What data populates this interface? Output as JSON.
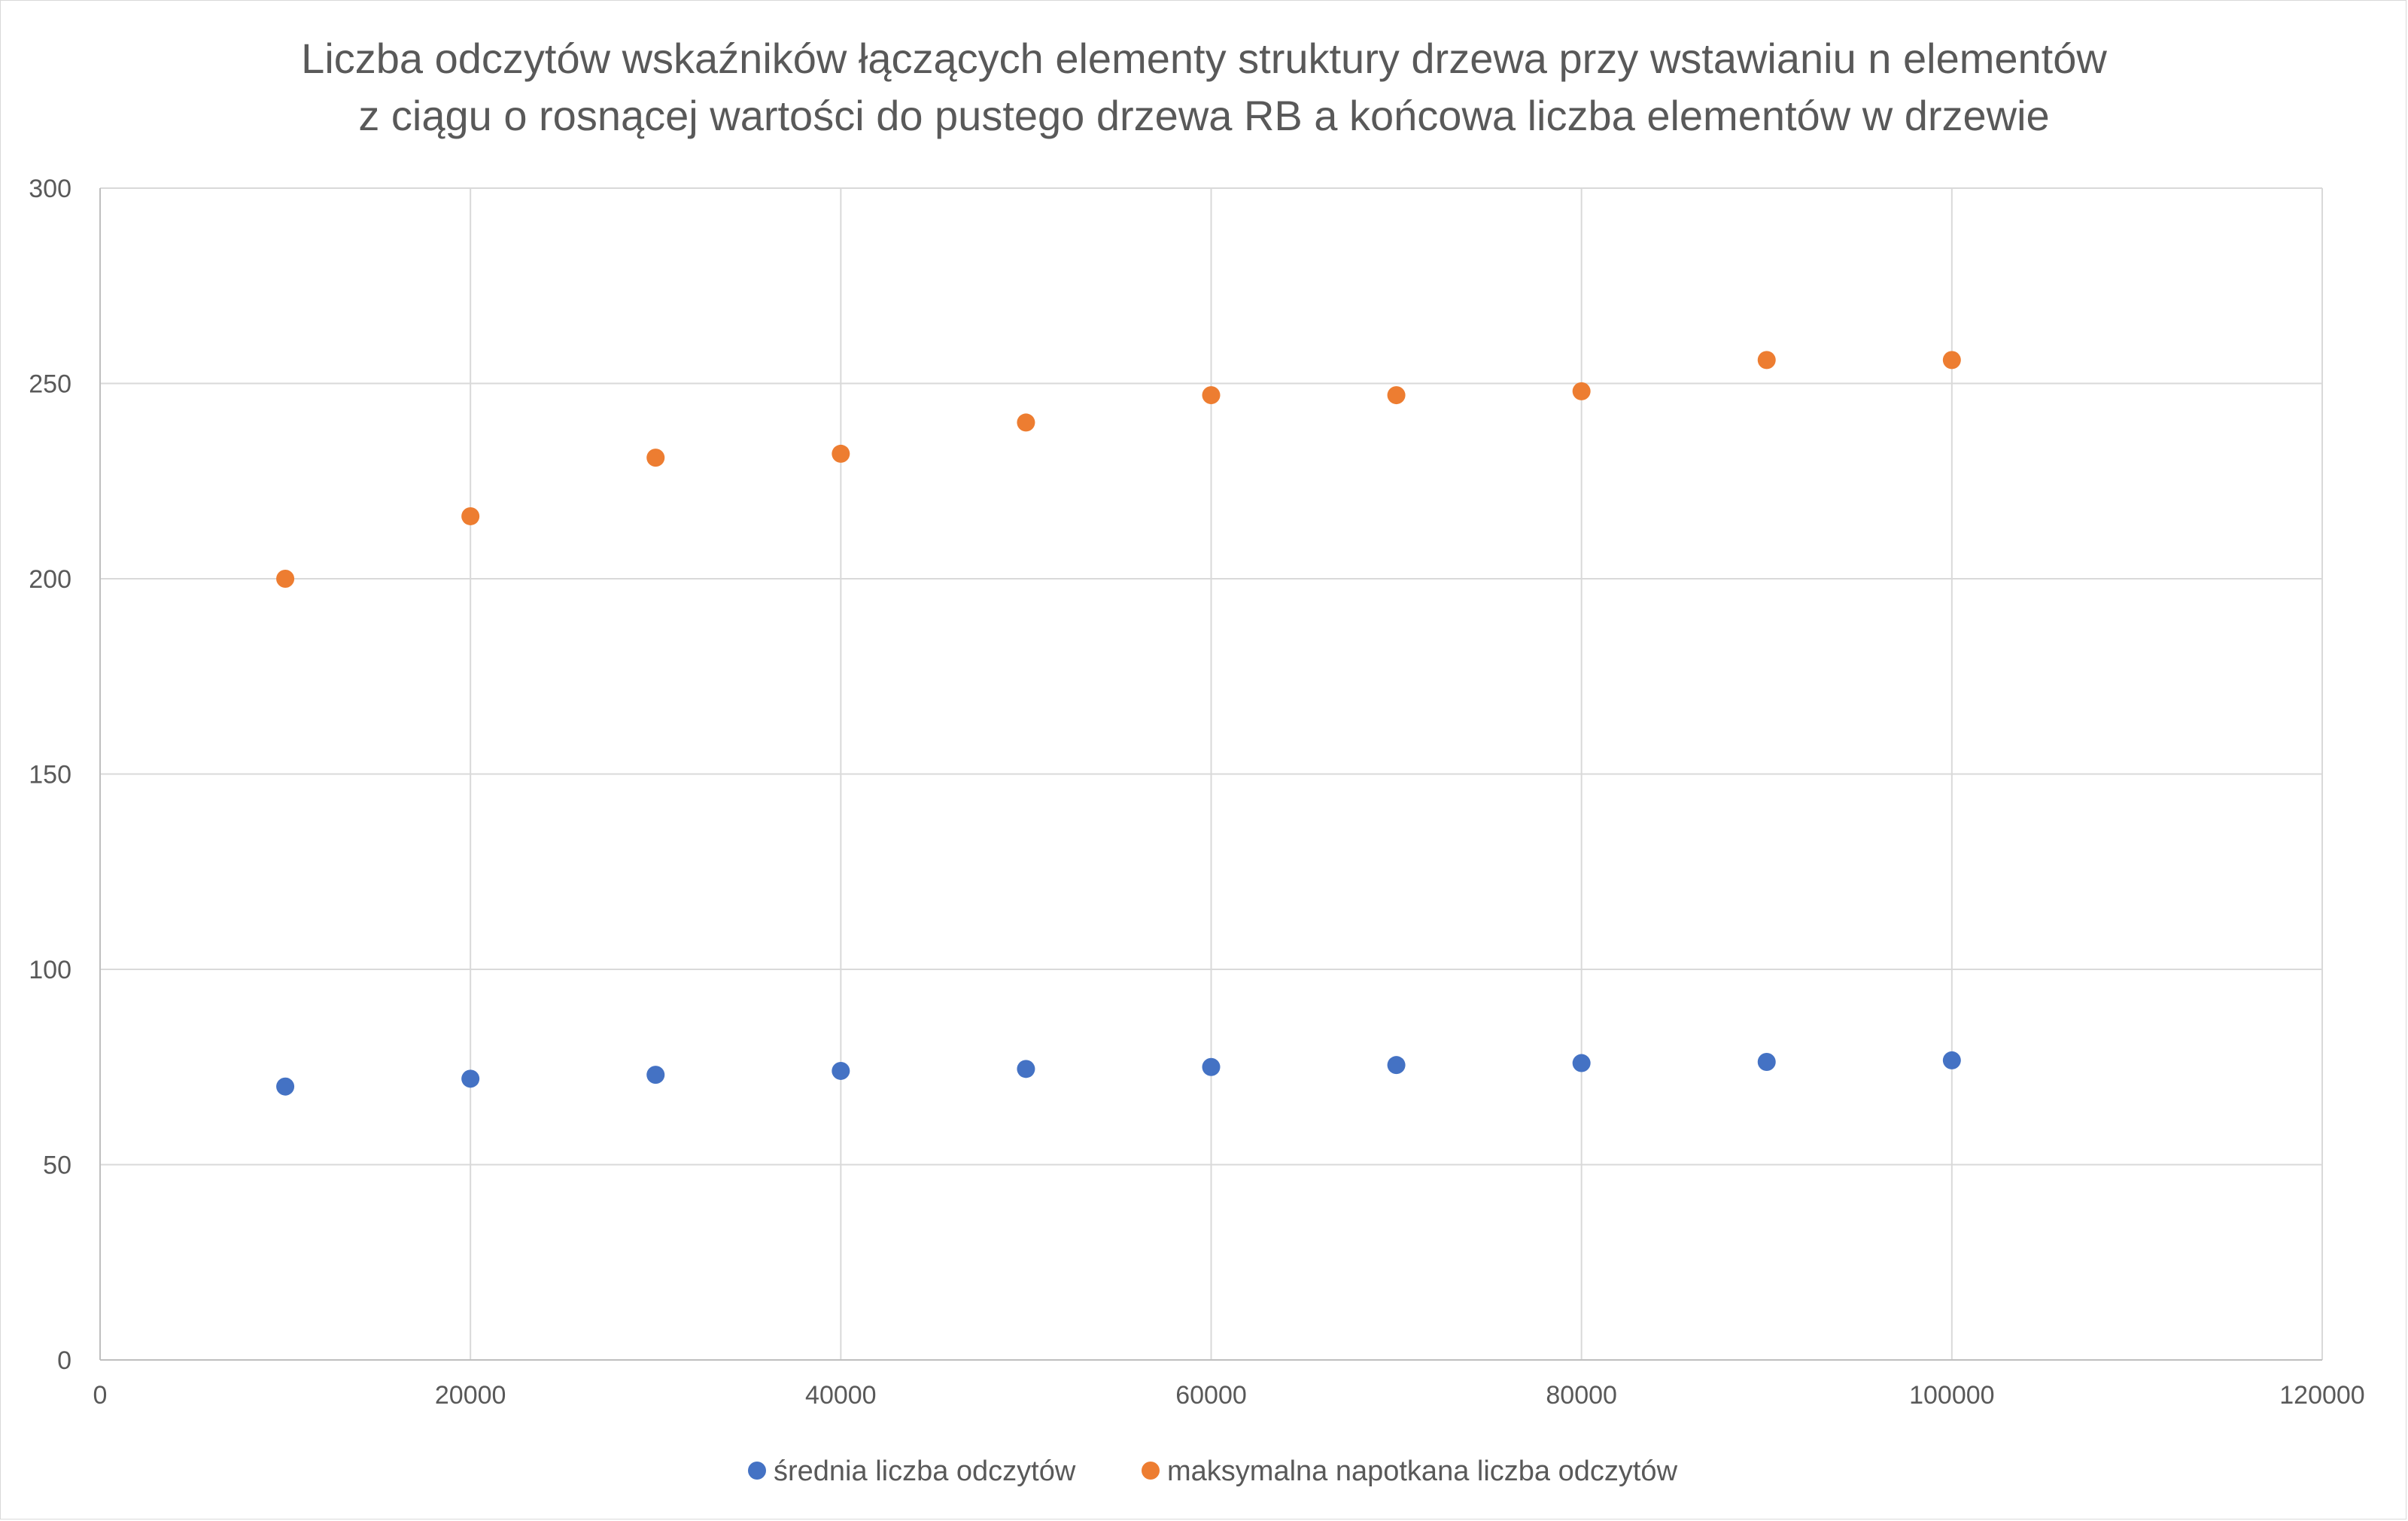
{
  "chart_data": {
    "type": "scatter",
    "title_lines": [
      "Liczba odczytów wskaźników łączących elementy struktury drzewa przy wstawianiu n elementów",
      "z ciągu o rosnącej wartości do pustego drzewa RB a końcowa liczba elementów w drzewie"
    ],
    "xlabel": "",
    "ylabel": "",
    "xlim": [
      0,
      120000
    ],
    "ylim": [
      0,
      300
    ],
    "xticks": [
      0,
      20000,
      40000,
      60000,
      80000,
      100000,
      120000
    ],
    "yticks": [
      0,
      50,
      100,
      150,
      200,
      250,
      300
    ],
    "x_tick_labels": [
      "0",
      "20000",
      "40000",
      "60000",
      "80000",
      "100000",
      "120000"
    ],
    "y_tick_labels": [
      "0",
      "50",
      "100",
      "150",
      "200",
      "250",
      "300"
    ],
    "grid": true,
    "legend_position": "bottom",
    "series": [
      {
        "name": "średnia liczba odczytów",
        "color": "#4472c4",
        "x": [
          10000,
          20000,
          30000,
          40000,
          50000,
          60000,
          70000,
          80000,
          90000,
          100000
        ],
        "y": [
          70,
          72,
          73,
          74,
          74.5,
          75,
          75.5,
          76,
          76.3,
          76.7
        ]
      },
      {
        "name": "maksymalna napotkana liczba odczytów",
        "color": "#ed7d31",
        "x": [
          10000,
          20000,
          30000,
          40000,
          50000,
          60000,
          70000,
          80000,
          90000,
          100000
        ],
        "y": [
          200,
          216,
          231,
          232,
          240,
          247,
          247,
          248,
          256,
          256
        ]
      }
    ]
  }
}
